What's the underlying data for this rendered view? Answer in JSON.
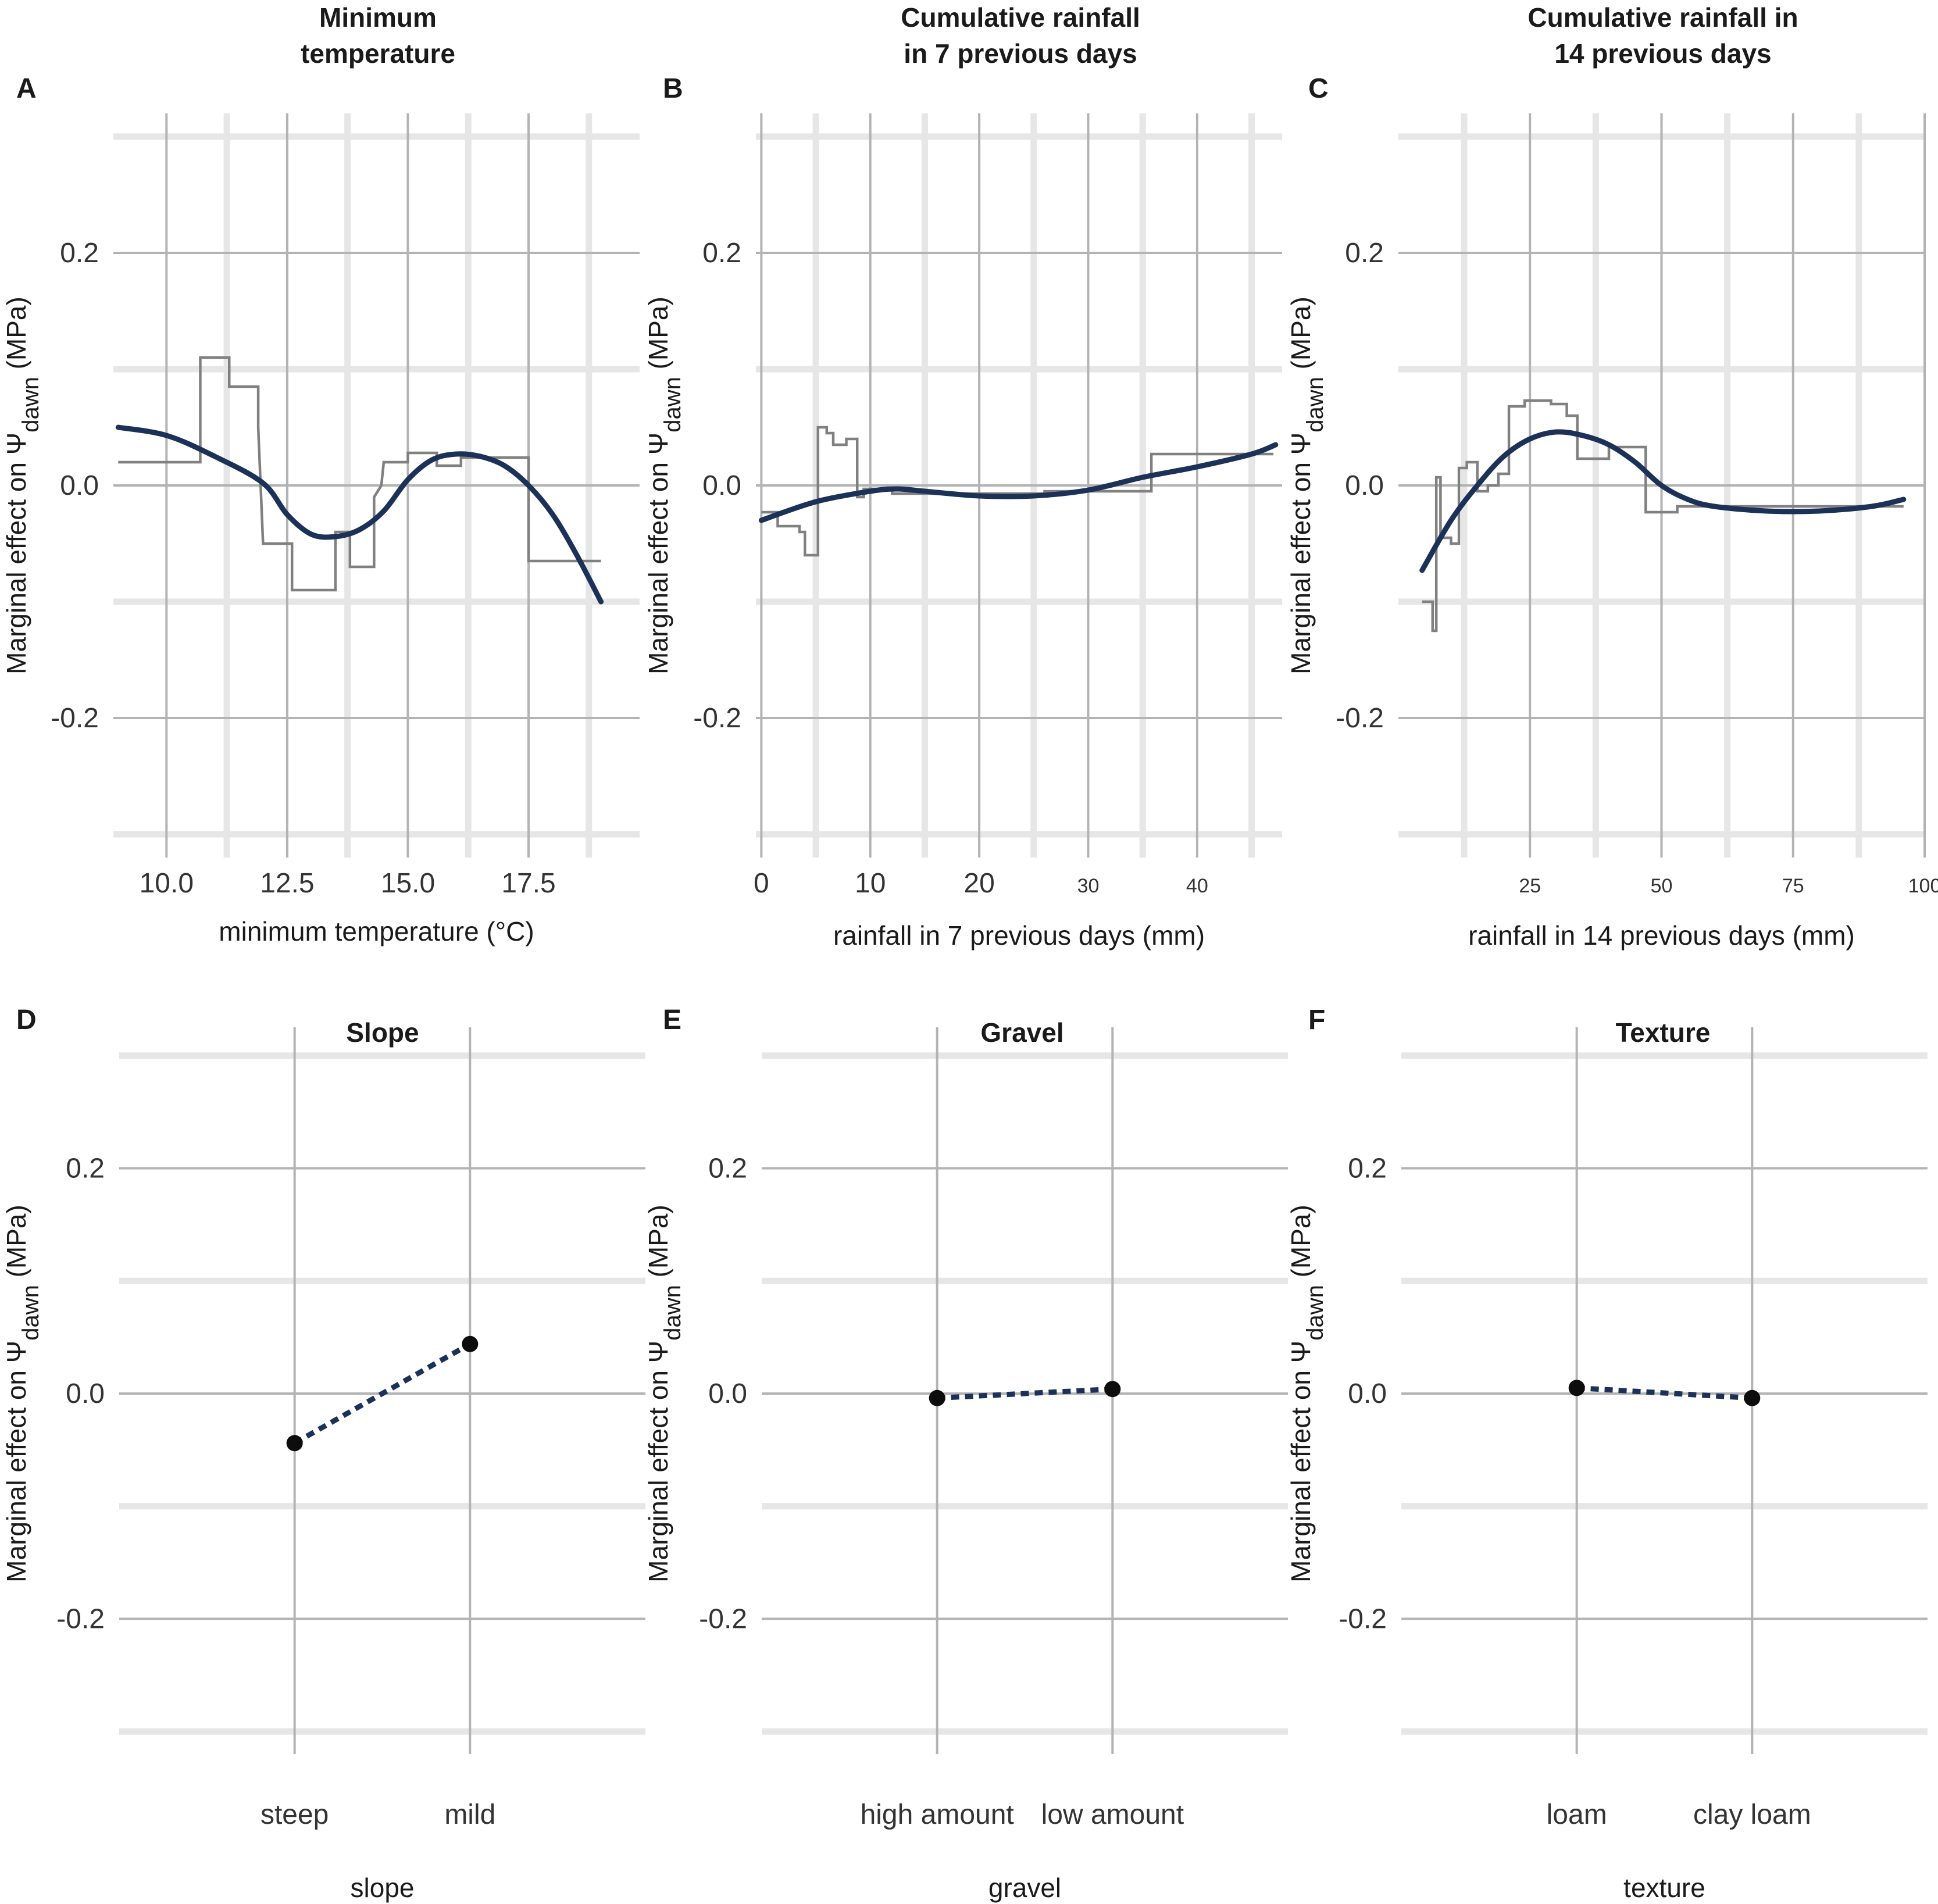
{
  "figure": {
    "y_axis_label_prefix": "Marginal effect on Ψ",
    "y_axis_label_sub": "dawn",
    "y_axis_label_suffix": " (MPa)"
  },
  "colors": {
    "grid_major": "#b3b3b3",
    "grid_minor": "#e6e6e6",
    "step_line": "#808080",
    "smooth_line": "#1b3157",
    "points": "#0d0d0d",
    "text": "#1a1a1a"
  },
  "chart_data": [
    {
      "id": "A",
      "letter": "A",
      "title_lines": [
        "Minimum",
        "temperature"
      ],
      "type": "line",
      "xlabel": "minimum temperature (°C)",
      "xlim": [
        8.9,
        19.8
      ],
      "ylim": [
        -0.32,
        0.32
      ],
      "x_ticks": [
        10.0,
        12.5,
        15.0,
        17.5
      ],
      "x_tick_labels": [
        "10.0",
        "12.5",
        "15.0",
        "17.5"
      ],
      "x_minor_ticks": [
        11.25,
        13.75,
        16.25,
        18.75
      ],
      "y_ticks": [
        -0.2,
        0.0,
        0.2
      ],
      "y_tick_labels": [
        "-0.2",
        "0.0",
        "0.2"
      ],
      "y_minor_ticks": [
        -0.3,
        -0.1,
        0.1,
        0.3
      ],
      "tick_style": "large",
      "series": [
        {
          "name": "ale_step",
          "style": "step",
          "x": [
            9.0,
            10.7,
            10.7,
            11.3,
            11.3,
            11.9,
            11.9,
            12.0,
            12.0,
            12.6,
            12.6,
            13.5,
            13.5,
            13.8,
            13.8,
            14.3,
            14.3,
            14.45,
            14.5,
            15.0,
            15.0,
            15.6,
            15.6,
            16.1,
            16.1,
            17.5,
            17.5,
            18.0,
            18.0,
            19.0
          ],
          "y": [
            0.02,
            0.02,
            0.11,
            0.11,
            0.085,
            0.085,
            0.05,
            -0.05,
            -0.05,
            -0.05,
            -0.09,
            -0.09,
            -0.04,
            -0.04,
            -0.07,
            -0.07,
            -0.01,
            0.0,
            0.02,
            0.02,
            0.028,
            0.028,
            0.017,
            0.017,
            0.024,
            0.024,
            -0.065,
            -0.065,
            -0.065,
            -0.065
          ]
        },
        {
          "name": "smooth",
          "style": "smooth",
          "x": [
            9.0,
            10.0,
            11.0,
            12.0,
            12.5,
            13.0,
            13.5,
            14.0,
            14.5,
            15.0,
            15.5,
            16.0,
            16.5,
            17.0,
            17.5,
            18.0,
            18.5,
            19.0
          ],
          "y": [
            0.05,
            0.043,
            0.025,
            0.002,
            -0.025,
            -0.042,
            -0.044,
            -0.038,
            -0.022,
            0.005,
            0.022,
            0.027,
            0.025,
            0.017,
            0.0,
            -0.025,
            -0.06,
            -0.1
          ]
        }
      ]
    },
    {
      "id": "B",
      "letter": "B",
      "title_lines": [
        "Cumulative rainfall",
        "in 7 previous days"
      ],
      "type": "line",
      "xlabel": "rainfall in 7 previous days (mm)",
      "xlim": [
        -0.5,
        47.8
      ],
      "ylim": [
        -0.32,
        0.32
      ],
      "x_ticks": [
        0,
        10,
        20,
        30,
        40
      ],
      "x_tick_labels": [
        "0",
        "10",
        "20",
        "30",
        "40"
      ],
      "x_minor_ticks": [
        5,
        15,
        25,
        35,
        45
      ],
      "y_ticks": [
        -0.2,
        0.0,
        0.2
      ],
      "y_tick_labels": [
        "-0.2",
        "0.0",
        "0.2"
      ],
      "y_minor_ticks": [
        -0.3,
        -0.1,
        0.1,
        0.3
      ],
      "tick_style": "mixed",
      "series": [
        {
          "name": "ale_step",
          "style": "step",
          "x": [
            0,
            1.5,
            1.5,
            3.5,
            3.5,
            4.0,
            4.0,
            5.2,
            5.2,
            6.0,
            6.0,
            6.6,
            6.6,
            7.8,
            7.8,
            8.8,
            8.8,
            9.4,
            9.4,
            12.0,
            12.0,
            26.0,
            26.0,
            35.8,
            35.8,
            47.0
          ],
          "y": [
            -0.023,
            -0.023,
            -0.035,
            -0.035,
            -0.04,
            -0.04,
            -0.06,
            -0.06,
            0.05,
            0.05,
            0.045,
            0.045,
            0.035,
            0.035,
            0.04,
            0.04,
            -0.01,
            -0.01,
            -0.003,
            -0.003,
            -0.007,
            -0.007,
            -0.005,
            -0.005,
            0.027,
            0.027
          ]
        },
        {
          "name": "smooth",
          "style": "smooth",
          "x": [
            0,
            5,
            10,
            12.5,
            15,
            20,
            25,
            30,
            35,
            40,
            45,
            47.2
          ],
          "y": [
            -0.03,
            -0.014,
            -0.005,
            -0.003,
            -0.005,
            -0.009,
            -0.009,
            -0.004,
            0.007,
            0.016,
            0.027,
            0.035
          ]
        }
      ]
    },
    {
      "id": "C",
      "letter": "C",
      "title_lines": [
        "Cumulative rainfall in",
        "14 previous days"
      ],
      "type": "line",
      "xlabel": "rainfall in 14 previous days (mm)",
      "xlim": [
        0,
        100
      ],
      "ylim": [
        -0.32,
        0.32
      ],
      "x_ticks": [
        25,
        50,
        75,
        100
      ],
      "x_tick_labels": [
        "25",
        "50",
        "75",
        "100"
      ],
      "x_minor_ticks": [
        12.5,
        37.5,
        62.5,
        87.5
      ],
      "y_ticks": [
        -0.2,
        0.0,
        0.2
      ],
      "y_tick_labels": [
        "-0.2",
        "0.0",
        "0.2"
      ],
      "y_minor_ticks": [
        -0.3,
        -0.1,
        0.1,
        0.3
      ],
      "tick_style": "small",
      "series": [
        {
          "name": "ale_step",
          "style": "step",
          "x": [
            4.5,
            6.5,
            6.5,
            7.2,
            7.2,
            8.0,
            8.0,
            10.0,
            10.0,
            11.5,
            11.5,
            13.0,
            13.0,
            15.0,
            15.0,
            17.0,
            17.0,
            19.0,
            19.0,
            21.0,
            21.0,
            24.0,
            24.0,
            29.0,
            29.0,
            32.0,
            32.0,
            34.0,
            34.0,
            40.0,
            40.0,
            47.0,
            47.0,
            53.0,
            53.0,
            58.0,
            58.0,
            96.0
          ],
          "y": [
            -0.1,
            -0.1,
            -0.125,
            -0.125,
            0.007,
            0.007,
            -0.045,
            -0.045,
            -0.05,
            -0.05,
            0.015,
            0.015,
            0.02,
            0.02,
            -0.005,
            -0.005,
            0.0,
            0.0,
            0.01,
            0.01,
            0.068,
            0.068,
            0.073,
            0.073,
            0.07,
            0.07,
            0.06,
            0.06,
            0.023,
            0.023,
            0.033,
            0.033,
            -0.023,
            -0.023,
            -0.018,
            -0.018,
            -0.018,
            -0.018
          ]
        },
        {
          "name": "smooth",
          "style": "smooth",
          "x": [
            4.5,
            10,
            15,
            20,
            25,
            30,
            35,
            40,
            45,
            50,
            55,
            60,
            70,
            80,
            90,
            96
          ],
          "y": [
            -0.073,
            -0.03,
            0.0,
            0.025,
            0.04,
            0.046,
            0.043,
            0.035,
            0.02,
            0.0,
            -0.012,
            -0.018,
            -0.022,
            -0.022,
            -0.018,
            -0.012
          ]
        }
      ]
    },
    {
      "id": "D",
      "letter": "D",
      "title_lines": [
        "Slope"
      ],
      "type": "line",
      "xlabel": "slope",
      "categories": [
        "steep",
        "mild"
      ],
      "values": [
        -0.044,
        0.044
      ],
      "ylim": [
        -0.32,
        0.32
      ],
      "y_ticks": [
        -0.2,
        0.0,
        0.2
      ],
      "y_tick_labels": [
        "-0.2",
        "0.0",
        "0.2"
      ],
      "y_minor_ticks": [
        -0.3,
        -0.1,
        0.1,
        0.3
      ]
    },
    {
      "id": "E",
      "letter": "E",
      "title_lines": [
        "Gravel"
      ],
      "type": "line",
      "xlabel": "gravel",
      "categories": [
        "high amount",
        "low amount"
      ],
      "values": [
        -0.004,
        0.004
      ],
      "ylim": [
        -0.32,
        0.32
      ],
      "y_ticks": [
        -0.2,
        0.0,
        0.2
      ],
      "y_tick_labels": [
        "-0.2",
        "0.0",
        "0.2"
      ],
      "y_minor_ticks": [
        -0.3,
        -0.1,
        0.1,
        0.3
      ]
    },
    {
      "id": "F",
      "letter": "F",
      "title_lines": [
        "Texture"
      ],
      "type": "line",
      "xlabel": "texture",
      "categories": [
        "loam",
        "clay loam"
      ],
      "values": [
        0.005,
        -0.004
      ],
      "ylim": [
        -0.32,
        0.32
      ],
      "y_ticks": [
        -0.2,
        0.0,
        0.2
      ],
      "y_tick_labels": [
        "-0.2",
        "0.0",
        "0.2"
      ],
      "y_minor_ticks": [
        -0.3,
        -0.1,
        0.1,
        0.3
      ]
    }
  ]
}
